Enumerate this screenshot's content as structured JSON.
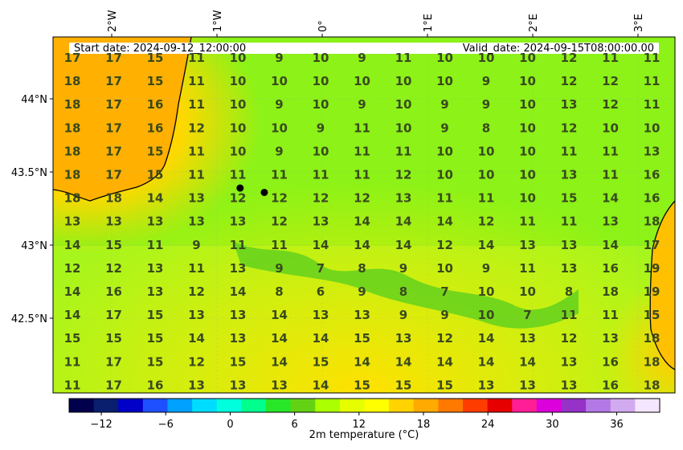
{
  "header": {
    "start_date": "Start date: 2024-09-12_12:00:00",
    "valid_date": "Valid_date: 2024-09-15T08:00:00.00"
  },
  "axes": {
    "lon_labels": [
      "2°W",
      "1°W",
      "0°",
      "1°E",
      "2°E",
      "3°E"
    ],
    "lat_labels": [
      "44°N",
      "43.5°N",
      "43°N",
      "42.5°N"
    ]
  },
  "colorbar": {
    "label": "2m temperature ($^\\circ$C)",
    "ticks": [
      "−12",
      "−6",
      "0",
      "6",
      "12",
      "18",
      "24",
      "30",
      "36"
    ],
    "range": [
      -15,
      40
    ],
    "colors": [
      "#00004d",
      "#0a1e6e",
      "#0000c8",
      "#1e50ff",
      "#00a0ff",
      "#00dcff",
      "#00ffdc",
      "#00ff8c",
      "#28e628",
      "#64d214",
      "#aaff00",
      "#e6ff00",
      "#ffff00",
      "#ffd200",
      "#ffaa00",
      "#ff7800",
      "#ff3c00",
      "#e60000",
      "#ff1e96",
      "#dc00dc",
      "#9632c8",
      "#b478e6",
      "#d2aaf0",
      "#f5e6ff"
    ]
  },
  "grid_values": [
    [
      "17",
      "17",
      "15",
      "11",
      "10",
      "9",
      "10",
      "9",
      "11",
      "10",
      "10",
      "10",
      "12",
      "11",
      "11"
    ],
    [
      "18",
      "17",
      "15",
      "11",
      "10",
      "10",
      "10",
      "10",
      "10",
      "10",
      "9",
      "10",
      "12",
      "12",
      "11"
    ],
    [
      "18",
      "17",
      "16",
      "11",
      "10",
      "9",
      "10",
      "9",
      "10",
      "9",
      "9",
      "10",
      "13",
      "12",
      "11"
    ],
    [
      "18",
      "17",
      "16",
      "12",
      "10",
      "10",
      "9",
      "11",
      "10",
      "9",
      "8",
      "10",
      "12",
      "10",
      "10"
    ],
    [
      "18",
      "17",
      "15",
      "11",
      "10",
      "9",
      "10",
      "11",
      "11",
      "10",
      "10",
      "10",
      "11",
      "11",
      "13"
    ],
    [
      "18",
      "17",
      "15",
      "11",
      "11",
      "11",
      "11",
      "11",
      "12",
      "10",
      "10",
      "10",
      "13",
      "11",
      "16"
    ],
    [
      "18",
      "18",
      "14",
      "13",
      "12",
      "12",
      "12",
      "12",
      "13",
      "11",
      "11",
      "10",
      "15",
      "14",
      "16"
    ],
    [
      "13",
      "13",
      "13",
      "13",
      "13",
      "12",
      "13",
      "14",
      "14",
      "14",
      "12",
      "11",
      "11",
      "13",
      "18"
    ],
    [
      "14",
      "15",
      "11",
      "9",
      "11",
      "11",
      "14",
      "14",
      "14",
      "12",
      "14",
      "13",
      "13",
      "14",
      "17"
    ],
    [
      "12",
      "12",
      "13",
      "11",
      "13",
      "9",
      "7",
      "8",
      "9",
      "10",
      "9",
      "11",
      "13",
      "16",
      "19"
    ],
    [
      "14",
      "16",
      "13",
      "12",
      "14",
      "8",
      "6",
      "9",
      "8",
      "7",
      "10",
      "10",
      "8",
      "18",
      "19"
    ],
    [
      "14",
      "17",
      "15",
      "13",
      "13",
      "14",
      "13",
      "13",
      "9",
      "9",
      "10",
      "7",
      "11",
      "11",
      "15"
    ],
    [
      "15",
      "15",
      "15",
      "14",
      "13",
      "14",
      "14",
      "15",
      "13",
      "12",
      "14",
      "13",
      "12",
      "13",
      "18"
    ],
    [
      "11",
      "17",
      "15",
      "12",
      "15",
      "14",
      "15",
      "14",
      "14",
      "14",
      "14",
      "14",
      "13",
      "16",
      "18"
    ],
    [
      "11",
      "17",
      "16",
      "13",
      "13",
      "13",
      "14",
      "15",
      "15",
      "15",
      "13",
      "13",
      "13",
      "16",
      "18"
    ]
  ],
  "markers": [
    {
      "lon": -0.78,
      "lat": 43.39
    },
    {
      "lon": -0.55,
      "lat": 43.36
    }
  ]
}
